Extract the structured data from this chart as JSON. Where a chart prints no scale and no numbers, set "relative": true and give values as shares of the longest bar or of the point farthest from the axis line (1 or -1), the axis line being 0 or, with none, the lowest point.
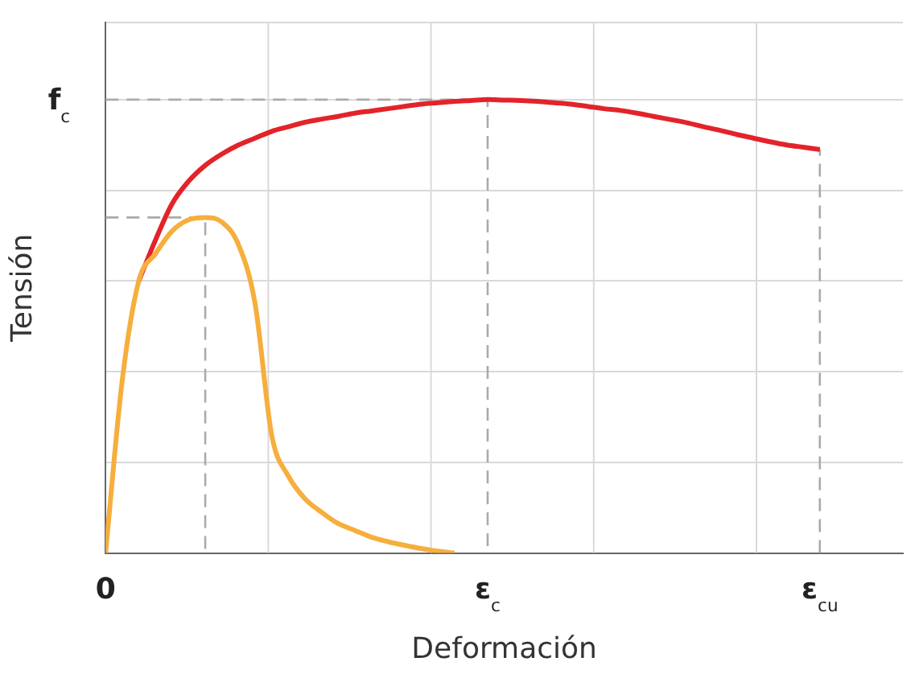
{
  "chart_data": {
    "type": "line",
    "xlabel": "Deformación",
    "ylabel": "Tensión",
    "relative": true,
    "grid": true,
    "marker": "none",
    "line_style": "solid",
    "categories": [
      "0",
      null,
      null,
      null,
      null,
      null,
      null,
      null,
      null,
      null,
      null,
      null,
      null,
      null,
      null,
      null,
      null,
      null,
      null,
      null,
      null,
      null,
      null,
      "ε$_{c}$",
      null,
      null,
      null,
      null,
      null,
      null,
      null,
      null,
      null,
      null,
      null,
      null,
      null,
      null,
      null,
      null,
      null,
      null,
      null,
      "ε$_{cu}$",
      null,
      null,
      null,
      null,
      null
    ],
    "series": [
      {
        "color": "#e3232a",
        "values": [
          null,
          null,
          0.6,
          0.69,
          0.77,
          0.82,
          0.855,
          0.88,
          0.9,
          0.915,
          0.93,
          0.94,
          0.95,
          0.957,
          0.963,
          0.97,
          0.975,
          0.98,
          0.985,
          0.99,
          0.993,
          0.996,
          0.998,
          1.0,
          0.999,
          0.998,
          0.996,
          0.993,
          0.99,
          0.985,
          0.98,
          0.976,
          0.97,
          0.963,
          0.956,
          0.949,
          0.94,
          0.932,
          0.923,
          0.915,
          0.907,
          0.9,
          0.895,
          0.89,
          null,
          null,
          null,
          null,
          null
        ]
      },
      {
        "color": "#f6ae3c",
        "values": [
          0,
          0.38,
          0.6,
          0.66,
          0.71,
          0.735,
          0.74,
          0.73,
          0.68,
          0.55,
          0.26,
          0.17,
          0.12,
          0.09,
          0.065,
          0.05,
          0.035,
          0.025,
          0.017,
          0.01,
          0.004,
          0,
          null,
          null,
          null,
          null,
          null,
          null,
          null,
          null,
          null,
          null,
          null,
          null,
          null,
          null,
          null,
          null,
          null,
          null,
          null,
          null,
          null,
          null,
          null,
          null,
          null,
          null,
          null
        ]
      }
    ],
    "ref_lines": [
      {
        "axis": "y",
        "value": 1,
        "label": "f$_{c}$",
        "color": "#aaaaaa",
        "line_style": "dashed"
      },
      {
        "axis": "y",
        "value": 0.74,
        "color": "#aaaaaa",
        "line_style": "dashed"
      },
      {
        "axis": "x",
        "value": "ε$_{cu}$",
        "color": "#aaaaaa",
        "line_style": "dashed"
      }
    ]
  }
}
